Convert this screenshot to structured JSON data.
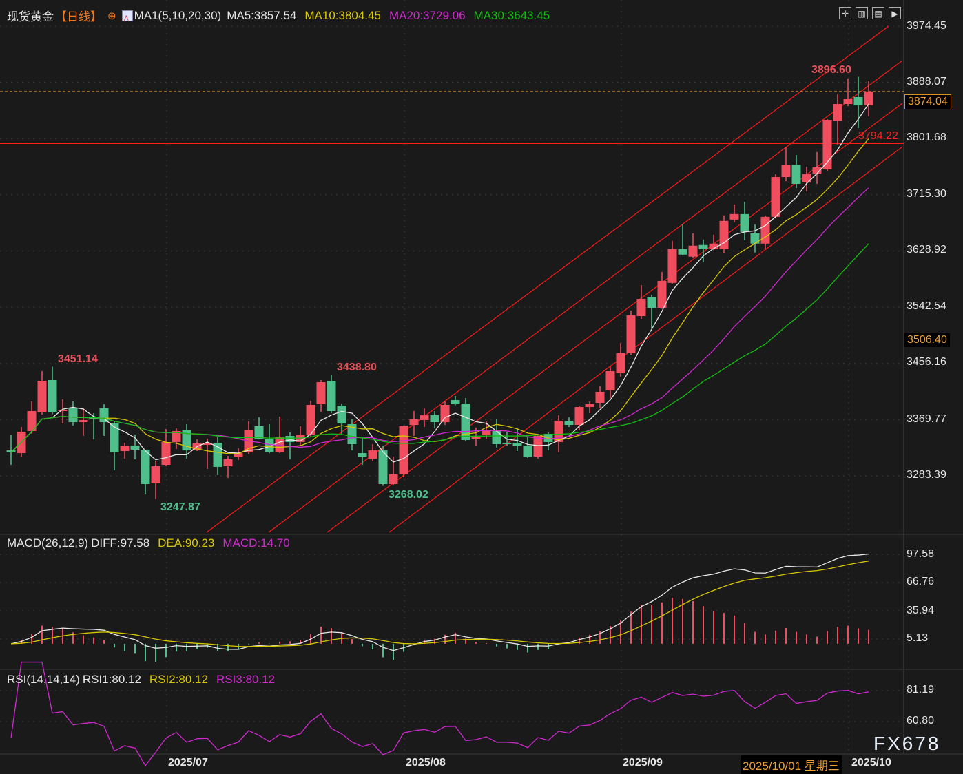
{
  "header": {
    "symbol": "现货黄金",
    "period": "【日线】",
    "period_icon": "circle-plus-icon",
    "ma_label": "MA1(5,10,20,30)",
    "ma5": "MA5:3857.54",
    "ma10": "MA10:3804.45",
    "ma20": "MA20:3729.06",
    "ma30": "MA30:3643.45"
  },
  "toolbar_icons": [
    "crosshair-icon",
    "chart-layout-icon",
    "chart-type-icon",
    "play-forward-icon"
  ],
  "macd_header": {
    "label": "MACD(26,12,9)",
    "diff": "DIFF:97.58",
    "dea": "DEA:90.23",
    "macd": "MACD:14.70"
  },
  "rsi_header": {
    "label": "RSI(14,14,14)",
    "rsi1": "RSI1:80.12",
    "rsi2": "RSI2:80.12",
    "rsi3": "RSI3:80.12"
  },
  "watermark": "FX678",
  "tooltip_date": "2025/10/01 星期三",
  "colors": {
    "up": "#f04e5e",
    "down": "#4fbf8c",
    "ma5": "#e8e8e8",
    "ma10": "#d8c800",
    "ma20": "#d22ad2",
    "ma30": "#12c012",
    "hline": "#ff1a1a",
    "channel": "#ff1a1a",
    "price_line": "#e0902a"
  },
  "chart_data": [
    {
      "type": "candlestick",
      "title": "现货黄金",
      "ylim": [
        3194.5,
        4014.7
      ],
      "y_ticks": [
        "3974.45",
        "3888.07",
        "3801.68",
        "3715.30",
        "3628.92",
        "3542.54",
        "3456.16",
        "3369.77",
        "3283.39"
      ],
      "x_ticks": [
        "2025/07",
        "2025/08",
        "2025/09",
        "2025/10"
      ],
      "current_price": "3874.04",
      "marker_price": "3506.40",
      "horizontal_line": {
        "price": 3794.22,
        "label": "3794.22"
      },
      "annotations": {
        "high1": "3451.14",
        "low1": "3247.87",
        "high2": "3438.80",
        "low2": "3268.02",
        "high3": "3896.60"
      },
      "moving_averages": [
        5,
        10,
        20,
        30
      ],
      "grid": true,
      "candles": [
        {
          "o": 3322.5,
          "h": 3345.8,
          "l": 3300.3,
          "c": 3319.4
        },
        {
          "o": 3318.3,
          "h": 3358.5,
          "l": 3313.0,
          "c": 3351.1
        },
        {
          "o": 3352.2,
          "h": 3397.7,
          "l": 3348.0,
          "c": 3382.9
        },
        {
          "o": 3380.8,
          "h": 3444.3,
          "l": 3377.6,
          "c": 3429.4
        },
        {
          "o": 3430.5,
          "h": 3451.14,
          "l": 3378.0,
          "c": 3380.8
        },
        {
          "o": 3382.9,
          "h": 3400.9,
          "l": 3363.8,
          "c": 3385.0
        },
        {
          "o": 3388.2,
          "h": 3397.7,
          "l": 3360.7,
          "c": 3365.9
        },
        {
          "o": 3365.9,
          "h": 3387.1,
          "l": 3344.8,
          "c": 3369.1
        },
        {
          "o": 3372.3,
          "h": 3379.7,
          "l": 3339.5,
          "c": 3371.2
        },
        {
          "o": 3387.1,
          "h": 3393.5,
          "l": 3344.8,
          "c": 3365.9
        },
        {
          "o": 3363.8,
          "h": 3367.0,
          "l": 3291.9,
          "c": 3319.4
        },
        {
          "o": 3321.5,
          "h": 3334.2,
          "l": 3309.9,
          "c": 3328.9
        },
        {
          "o": 3330.0,
          "h": 3346.9,
          "l": 3308.8,
          "c": 3323.6
        },
        {
          "o": 3323.6,
          "h": 3323.6,
          "l": 3254.8,
          "c": 3270.7
        },
        {
          "o": 3271.8,
          "h": 3306.7,
          "l": 3247.87,
          "c": 3298.2
        },
        {
          "o": 3300.3,
          "h": 3355.4,
          "l": 3298.0,
          "c": 3335.3
        },
        {
          "o": 3335.3,
          "h": 3356.4,
          "l": 3324.7,
          "c": 3352.2
        },
        {
          "o": 3354.3,
          "h": 3362.8,
          "l": 3309.9,
          "c": 3322.5
        },
        {
          "o": 3322.5,
          "h": 3339.5,
          "l": 3321.5,
          "c": 3333.1
        },
        {
          "o": 3331.0,
          "h": 3340.5,
          "l": 3294.0,
          "c": 3334.2
        },
        {
          "o": 3334.2,
          "h": 3342.7,
          "l": 3284.5,
          "c": 3297.2
        },
        {
          "o": 3298.2,
          "h": 3314.1,
          "l": 3280.2,
          "c": 3308.8
        },
        {
          "o": 3312.0,
          "h": 3325.7,
          "l": 3307.7,
          "c": 3318.3
        },
        {
          "o": 3319.4,
          "h": 3367.0,
          "l": 3317.0,
          "c": 3354.3
        },
        {
          "o": 3359.6,
          "h": 3373.4,
          "l": 3339.5,
          "c": 3340.5
        },
        {
          "o": 3340.5,
          "h": 3362.8,
          "l": 3318.0,
          "c": 3320.4
        },
        {
          "o": 3320.4,
          "h": 3374.4,
          "l": 3318.3,
          "c": 3342.7
        },
        {
          "o": 3344.8,
          "h": 3350.1,
          "l": 3308.8,
          "c": 3335.3
        },
        {
          "o": 3335.3,
          "h": 3359.6,
          "l": 3330.0,
          "c": 3345.8
        },
        {
          "o": 3345.8,
          "h": 3398.7,
          "l": 3342.7,
          "c": 3392.4
        },
        {
          "o": 3393.5,
          "h": 3430.5,
          "l": 3381.8,
          "c": 3427.3
        },
        {
          "o": 3429.4,
          "h": 3438.8,
          "l": 3379.7,
          "c": 3382.9
        },
        {
          "o": 3391.3,
          "h": 3394.5,
          "l": 3348.0,
          "c": 3363.8
        },
        {
          "o": 3362.8,
          "h": 3371.2,
          "l": 3322.5,
          "c": 3332.1
        },
        {
          "o": 3318.3,
          "h": 3342.7,
          "l": 3300.3,
          "c": 3312.0
        },
        {
          "o": 3309.9,
          "h": 3332.1,
          "l": 3305.6,
          "c": 3322.5
        },
        {
          "o": 3322.5,
          "h": 3330.0,
          "l": 3268.02,
          "c": 3270.7
        },
        {
          "o": 3270.7,
          "h": 3313.0,
          "l": 3269.0,
          "c": 3285.6
        },
        {
          "o": 3285.6,
          "h": 3360.7,
          "l": 3281.3,
          "c": 3359.6
        },
        {
          "o": 3361.7,
          "h": 3382.9,
          "l": 3344.8,
          "c": 3370.2
        },
        {
          "o": 3369.1,
          "h": 3387.1,
          "l": 3358.5,
          "c": 3376.5
        },
        {
          "o": 3376.5,
          "h": 3382.9,
          "l": 3356.4,
          "c": 3365.9
        },
        {
          "o": 3365.9,
          "h": 3397.7,
          "l": 3361.7,
          "c": 3392.4
        },
        {
          "o": 3399.8,
          "h": 3406.2,
          "l": 3392.0,
          "c": 3393.5
        },
        {
          "o": 3394.5,
          "h": 3403.0,
          "l": 3337.0,
          "c": 3338.4
        },
        {
          "o": 3340.5,
          "h": 3357.5,
          "l": 3328.9,
          "c": 3342.7
        },
        {
          "o": 3345.8,
          "h": 3367.0,
          "l": 3340.5,
          "c": 3353.2
        },
        {
          "o": 3353.2,
          "h": 3371.2,
          "l": 3326.8,
          "c": 3332.1
        },
        {
          "o": 3334.2,
          "h": 3351.1,
          "l": 3330.0,
          "c": 3332.1
        },
        {
          "o": 3334.2,
          "h": 3355.4,
          "l": 3321.5,
          "c": 3328.9
        },
        {
          "o": 3330.0,
          "h": 3343.7,
          "l": 3311.0,
          "c": 3312.0
        },
        {
          "o": 3313.0,
          "h": 3348.0,
          "l": 3309.9,
          "c": 3344.8
        },
        {
          "o": 3348.0,
          "h": 3350.1,
          "l": 3322.5,
          "c": 3335.3
        },
        {
          "o": 3335.3,
          "h": 3376.5,
          "l": 3319.4,
          "c": 3368.1
        },
        {
          "o": 3367.0,
          "h": 3373.4,
          "l": 3358.5,
          "c": 3361.7
        },
        {
          "o": 3361.7,
          "h": 3390.3,
          "l": 3353.2,
          "c": 3389.2
        },
        {
          "o": 3389.2,
          "h": 3397.7,
          "l": 3379.7,
          "c": 3393.5
        },
        {
          "o": 3395.6,
          "h": 3421.1,
          "l": 3387.1,
          "c": 3412.6
        },
        {
          "o": 3414.6,
          "h": 3451.6,
          "l": 3403.0,
          "c": 3444.3
        },
        {
          "o": 3441.1,
          "h": 3487.6,
          "l": 3435.8,
          "c": 3471.8
        },
        {
          "o": 3471.8,
          "h": 3537.4,
          "l": 3468.6,
          "c": 3530.0
        },
        {
          "o": 3528.9,
          "h": 3576.5,
          "l": 3524.7,
          "c": 3555.4
        },
        {
          "o": 3557.5,
          "h": 3561.7,
          "l": 3509.9,
          "c": 3541.6
        },
        {
          "o": 3541.6,
          "h": 3596.7,
          "l": 3540.0,
          "c": 3583.0
        },
        {
          "o": 3579.9,
          "h": 3644.5,
          "l": 3578.8,
          "c": 3631.8
        },
        {
          "o": 3631.8,
          "h": 3669.9,
          "l": 3622.0,
          "c": 3623.4
        },
        {
          "o": 3620.2,
          "h": 3656.1,
          "l": 3618.1,
          "c": 3637.1
        },
        {
          "o": 3638.2,
          "h": 3646.6,
          "l": 3611.7,
          "c": 3631.8
        },
        {
          "o": 3631.8,
          "h": 3654.0,
          "l": 3630.0,
          "c": 3640.3
        },
        {
          "o": 3631.8,
          "h": 3683.6,
          "l": 3625.5,
          "c": 3675.2
        },
        {
          "o": 3677.2,
          "h": 3700.5,
          "l": 3673.1,
          "c": 3685.7
        },
        {
          "o": 3685.7,
          "h": 3704.7,
          "l": 3645.5,
          "c": 3658.2
        },
        {
          "o": 3656.1,
          "h": 3669.9,
          "l": 3626.5,
          "c": 3640.3
        },
        {
          "o": 3640.3,
          "h": 3683.6,
          "l": 3631.8,
          "c": 3681.5
        },
        {
          "o": 3681.5,
          "h": 3746.9,
          "l": 3679.0,
          "c": 3742.7
        },
        {
          "o": 3742.7,
          "h": 3789.1,
          "l": 3736.2,
          "c": 3760.7
        },
        {
          "o": 3761.7,
          "h": 3776.5,
          "l": 3725.7,
          "c": 3732.1
        },
        {
          "o": 3734.2,
          "h": 3758.6,
          "l": 3720.5,
          "c": 3746.9
        },
        {
          "o": 3748.0,
          "h": 3781.0,
          "l": 3732.1,
          "c": 3757.5
        },
        {
          "o": 3754.3,
          "h": 3831.6,
          "l": 3752.2,
          "c": 3830.5
        },
        {
          "o": 3829.5,
          "h": 3869.7,
          "l": 3792.4,
          "c": 3854.9
        },
        {
          "o": 3854.9,
          "h": 3894.0,
          "l": 3851.7,
          "c": 3862.3
        },
        {
          "o": 3865.5,
          "h": 3896.6,
          "l": 3817.8,
          "c": 3852.8
        },
        {
          "o": 3852.8,
          "h": 3889.9,
          "l": 3836.0,
          "c": 3874.04
        }
      ]
    },
    {
      "type": "macd",
      "params": [
        26,
        12,
        9
      ],
      "ylim": [
        -26.4,
        117.9
      ],
      "y_ticks": [
        "97.58",
        "66.76",
        "35.94",
        "5.13"
      ],
      "last": {
        "diff": 97.58,
        "dea": 90.23,
        "macd": 14.7
      }
    },
    {
      "type": "rsi",
      "params": [
        14,
        14,
        14
      ],
      "ylim": [
        39.5,
        93.9
      ],
      "y_ticks": [
        "81.19",
        "60.80"
      ],
      "last": {
        "rsi1": 80.12,
        "rsi2": 80.12,
        "rsi3": 80.12
      }
    }
  ]
}
